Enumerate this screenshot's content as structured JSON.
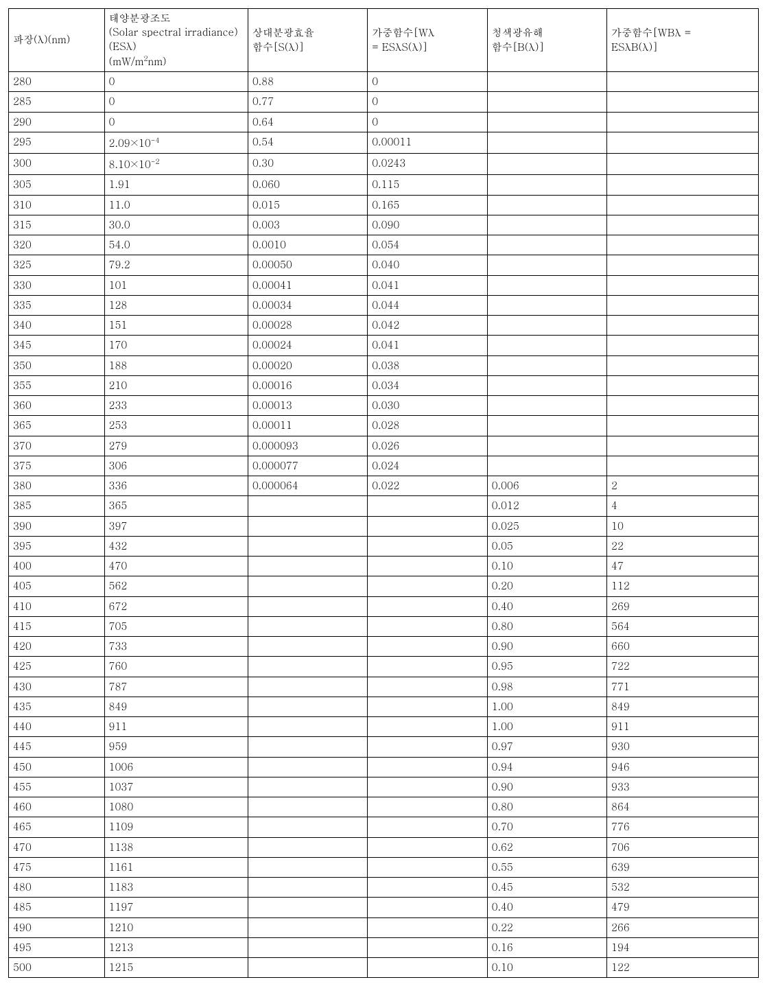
{
  "table": {
    "background_color": "#ffffff",
    "border_color": "#000000",
    "text_color": "#000000",
    "font_size_pt": 11,
    "header_font_size_pt": 11,
    "columns": [
      {
        "key": "c0",
        "label_html": "파장(λ)(nm)",
        "width_pct": 12
      },
      {
        "key": "c1",
        "label_html": "태양분광조도<br>(Solar spectral irradiance)(ESλ)<br>(mW/m<sup>2</sup>nm)",
        "width_pct": 18
      },
      {
        "key": "c2",
        "label_html": "상대분광효율<br>함수[S(λ)]",
        "width_pct": 15
      },
      {
        "key": "c3",
        "label_html": "가중함수[Wλ<br>= ESλS(λ)]",
        "width_pct": 15
      },
      {
        "key": "c4",
        "label_html": "청색광유해<br>함수[B(λ)]",
        "width_pct": 15
      },
      {
        "key": "c5",
        "label_html": "가중함수[WBλ =<br>ESλB(λ)]",
        "width_pct": 19
      }
    ],
    "rows": [
      [
        "280",
        "0",
        "0.88",
        "0",
        "",
        ""
      ],
      [
        "285",
        "0",
        "0.77",
        "0",
        "",
        ""
      ],
      [
        "290",
        "0",
        "0.64",
        "0",
        "",
        ""
      ],
      [
        "295",
        "2.09×10<sup>-4</sup>",
        "0.54",
        "0.00011",
        "",
        ""
      ],
      [
        "300",
        "8.10×10<sup>-2</sup>",
        "0.30",
        "0.0243",
        "",
        ""
      ],
      [
        "305",
        "1.91",
        "0.060",
        "0.115",
        "",
        ""
      ],
      [
        "310",
        "11.0",
        "0.015",
        "0.165",
        "",
        ""
      ],
      [
        "315",
        "30.0",
        "0.003",
        "0.090",
        "",
        ""
      ],
      [
        "320",
        "54.0",
        "0.0010",
        "0.054",
        "",
        ""
      ],
      [
        "325",
        "79.2",
        "0.00050",
        "0.040",
        "",
        ""
      ],
      [
        "330",
        "101",
        "0.00041",
        "0.041",
        "",
        ""
      ],
      [
        "335",
        "128",
        "0.00034",
        "0.044",
        "",
        ""
      ],
      [
        "340",
        "151",
        "0.00028",
        "0.042",
        "",
        ""
      ],
      [
        "345",
        "170",
        "0.00024",
        "0.041",
        "",
        ""
      ],
      [
        "350",
        "188",
        "0.00020",
        "0.038",
        "",
        ""
      ],
      [
        "355",
        "210",
        "0.00016",
        "0.034",
        "",
        ""
      ],
      [
        "360",
        "233",
        "0.00013",
        "0.030",
        "",
        ""
      ],
      [
        "365",
        "253",
        "0.00011",
        "0.028",
        "",
        ""
      ],
      [
        "370",
        "279",
        "0.000093",
        "0.026",
        "",
        ""
      ],
      [
        "375",
        "306",
        "0.000077",
        "0.024",
        "",
        ""
      ],
      [
        "380",
        "336",
        "0.000064",
        "0.022",
        "0.006",
        "2"
      ],
      [
        "385",
        "365",
        "",
        "",
        "0.012",
        "4"
      ],
      [
        "390",
        "397",
        "",
        "",
        "0.025",
        "10"
      ],
      [
        "395",
        "432",
        "",
        "",
        "0.05",
        "22"
      ],
      [
        "400",
        "470",
        "",
        "",
        "0.10",
        "47"
      ],
      [
        "405",
        "562",
        "",
        "",
        "0.20",
        "112"
      ],
      [
        "410",
        "672",
        "",
        "",
        "0.40",
        "269"
      ],
      [
        "415",
        "705",
        "",
        "",
        "0.80",
        "564"
      ],
      [
        "420",
        "733",
        "",
        "",
        "0.90",
        "660"
      ],
      [
        "425",
        "760",
        "",
        "",
        "0.95",
        "722"
      ],
      [
        "430",
        "787",
        "",
        "",
        "0.98",
        "771"
      ],
      [
        "435",
        "849",
        "",
        "",
        "1.00",
        "849"
      ],
      [
        "440",
        "911",
        "",
        "",
        "1.00",
        "911"
      ],
      [
        "445",
        "959",
        "",
        "",
        "0.97",
        "930"
      ],
      [
        "450",
        "1006",
        "",
        "",
        "0.94",
        "946"
      ],
      [
        "455",
        "1037",
        "",
        "",
        "0.90",
        "933"
      ],
      [
        "460",
        "1080",
        "",
        "",
        "0.80",
        "864"
      ],
      [
        "465",
        "1109",
        "",
        "",
        "0.70",
        "776"
      ],
      [
        "470",
        "1138",
        "",
        "",
        "0.62",
        "706"
      ],
      [
        "475",
        "1161",
        "",
        "",
        "0.55",
        "639"
      ],
      [
        "480",
        "1183",
        "",
        "",
        "0.45",
        "532"
      ],
      [
        "485",
        "1197",
        "",
        "",
        "0.40",
        "479"
      ],
      [
        "490",
        "1210",
        "",
        "",
        "0.22",
        "266"
      ],
      [
        "495",
        "1213",
        "",
        "",
        "0.16",
        "194"
      ],
      [
        "500",
        "1215",
        "",
        "",
        "0.10",
        "122"
      ]
    ]
  }
}
